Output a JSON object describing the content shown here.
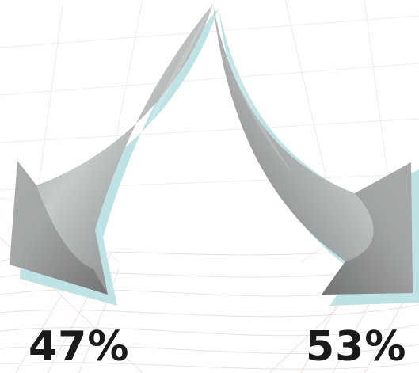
{
  "split": {
    "left": {
      "value": "47%"
    },
    "right": {
      "value": "53%"
    }
  },
  "colors": {
    "arrow_light": "#c7caca",
    "arrow_mid": "#9c9fa0",
    "arrow_dark": "#5e6062",
    "shadow": "#bfe2e4",
    "background_lines": "#e6dad6",
    "text": "#1a1a1a"
  },
  "icons": [
    "arrow-split-left-icon",
    "arrow-split-right-icon"
  ]
}
